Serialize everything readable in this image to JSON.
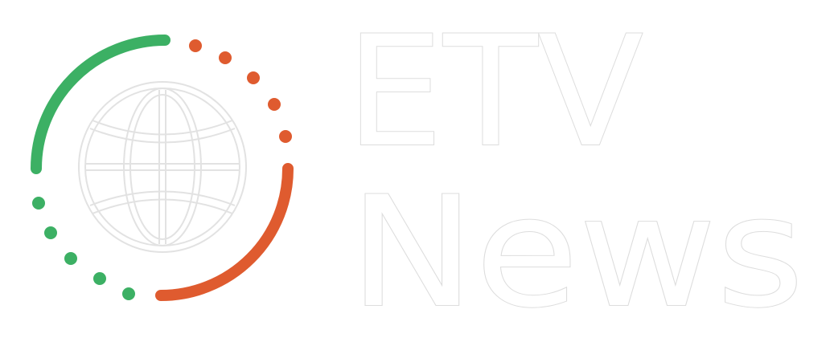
{
  "logo": {
    "wordmark_line1": "ETV",
    "wordmark_line2": "News",
    "colors": {
      "green": "#3cb064",
      "orange": "#df5b2f",
      "globe_outline": "#e2e2e2",
      "background": "#ffffff"
    },
    "icon": "globe-icon"
  }
}
